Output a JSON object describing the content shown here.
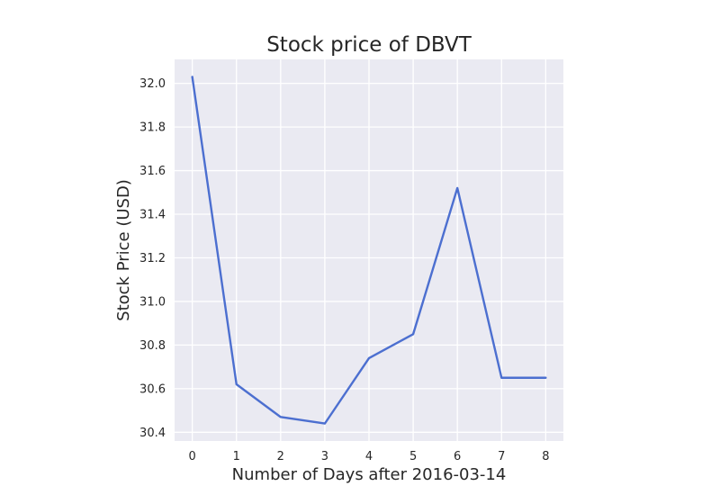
{
  "chart_data": {
    "type": "line",
    "title": "Stock price of DBVT",
    "xlabel": "Number of Days after 2016-03-14",
    "ylabel": "Stock Price (USD)",
    "x": [
      0,
      1,
      2,
      3,
      4,
      5,
      6,
      7,
      8
    ],
    "series": [
      {
        "values": [
          32.03,
          30.62,
          30.47,
          30.44,
          30.74,
          30.85,
          31.52,
          30.65,
          30.65
        ],
        "color": "#4c6fd0"
      }
    ],
    "xlim": [
      -0.4,
      8.4
    ],
    "ylim": [
      30.36,
      32.11
    ],
    "xticks": [
      0,
      1,
      2,
      3,
      4,
      5,
      6,
      7,
      8
    ],
    "yticks": [
      30.4,
      30.6,
      30.8,
      31.0,
      31.2,
      31.4,
      31.6,
      31.8,
      32.0
    ],
    "ytick_labels": [
      "30.4",
      "30.6",
      "30.8",
      "31.0",
      "31.2",
      "31.4",
      "31.6",
      "31.8",
      "32.0"
    ],
    "grid": true,
    "plot_background": "#eaeaf2",
    "grid_color": "#ffffff"
  }
}
